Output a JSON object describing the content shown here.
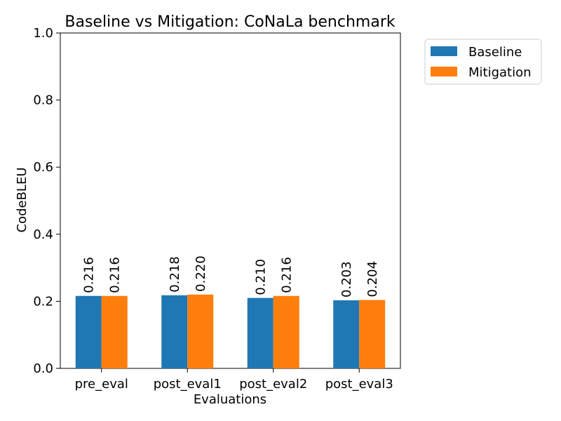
{
  "chart_data": {
    "type": "bar",
    "title": "Baseline vs Mitigation: CoNaLa benchmark",
    "xlabel": "Evaluations",
    "ylabel": "CodeBLEU",
    "categories": [
      "pre_eval",
      "post_eval1",
      "post_eval2",
      "post_eval3"
    ],
    "series": [
      {
        "name": "Baseline",
        "color": "#1f77b4",
        "values": [
          0.216,
          0.218,
          0.21,
          0.203
        ],
        "labels": [
          "0.216",
          "0.218",
          "0.210",
          "0.203"
        ]
      },
      {
        "name": "Mitigation",
        "color": "#ff7f0e",
        "values": [
          0.216,
          0.22,
          0.216,
          0.204
        ],
        "labels": [
          "0.216",
          "0.220",
          "0.216",
          "0.204"
        ]
      }
    ],
    "ylim": [
      0,
      1.0
    ],
    "yticks": [
      0.0,
      0.2,
      0.4,
      0.6,
      0.8,
      1.0
    ],
    "ytick_labels": [
      "0.0",
      "0.2",
      "0.4",
      "0.6",
      "0.8",
      "1.0"
    ],
    "grid": false,
    "legend_position": "outside-top-right"
  }
}
